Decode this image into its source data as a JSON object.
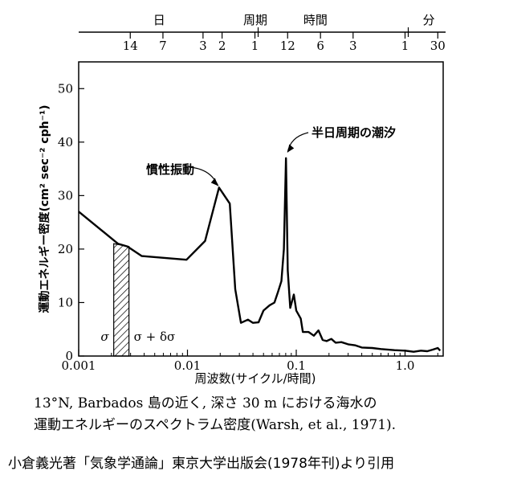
{
  "chart_data": {
    "type": "line",
    "xscale": "log",
    "xlim": [
      0.001,
      2.5
    ],
    "ylim": [
      0,
      55
    ],
    "xlabel": "周波数(サイクル/時間)",
    "ylabel": "運動エネルギー密度(cm² sec⁻² cph⁻¹)",
    "x_ticks": [
      0.001,
      0.01,
      0.1,
      1.0
    ],
    "x_tick_labels": [
      "0.001",
      "0.01",
      "0.1",
      "1.0"
    ],
    "y_ticks": [
      0,
      10,
      20,
      30,
      40,
      50
    ],
    "y_tick_labels": [
      "0",
      "10",
      "20",
      "30",
      "40",
      "50"
    ],
    "top_axis": {
      "groups": [
        {
          "label": "日",
          "center": 0.0055
        },
        {
          "label": "周期",
          "center": 0.042
        },
        {
          "label": "時間",
          "center": 0.15
        },
        {
          "label": "分",
          "center": 1.65
        }
      ],
      "ticks": [
        {
          "label": "14",
          "x": 0.00298
        },
        {
          "label": "7",
          "x": 0.00595
        },
        {
          "label": "3",
          "x": 0.0139
        },
        {
          "label": "2",
          "x": 0.0208
        },
        {
          "label": "1",
          "x": 0.0417
        },
        {
          "label": "12",
          "x": 0.0833
        },
        {
          "label": "6",
          "x": 0.167
        },
        {
          "label": "3",
          "x": 0.333
        },
        {
          "label": "1",
          "x": 1.0
        },
        {
          "label": "30",
          "x": 2.0
        }
      ]
    },
    "series": [
      {
        "points": [
          [
            0.001,
            27
          ],
          [
            0.0023,
            21
          ],
          [
            0.0028,
            20.5
          ],
          [
            0.0038,
            18.7
          ],
          [
            0.0098,
            18
          ],
          [
            0.0145,
            21.5
          ],
          [
            0.0195,
            31.5
          ],
          [
            0.0245,
            28.5
          ],
          [
            0.0275,
            12.5
          ],
          [
            0.031,
            6.2
          ],
          [
            0.036,
            6.8
          ],
          [
            0.04,
            6.2
          ],
          [
            0.045,
            6.3
          ],
          [
            0.05,
            8.5
          ],
          [
            0.057,
            9.5
          ],
          [
            0.063,
            10
          ],
          [
            0.068,
            12
          ],
          [
            0.073,
            14
          ],
          [
            0.077,
            20
          ],
          [
            0.0805,
            37
          ],
          [
            0.0835,
            16
          ],
          [
            0.088,
            9
          ],
          [
            0.095,
            11.5
          ],
          [
            0.1,
            8.5
          ],
          [
            0.11,
            7
          ],
          [
            0.115,
            4.5
          ],
          [
            0.13,
            4.5
          ],
          [
            0.145,
            3.8
          ],
          [
            0.16,
            4.8
          ],
          [
            0.175,
            3
          ],
          [
            0.19,
            2.8
          ],
          [
            0.21,
            3.2
          ],
          [
            0.23,
            2.5
          ],
          [
            0.26,
            2.6
          ],
          [
            0.3,
            2.2
          ],
          [
            0.35,
            2
          ],
          [
            0.4,
            1.6
          ],
          [
            0.5,
            1.5
          ],
          [
            0.6,
            1.3
          ],
          [
            0.8,
            1.1
          ],
          [
            1.0,
            1.0
          ],
          [
            1.2,
            0.8
          ],
          [
            1.4,
            1.0
          ],
          [
            1.6,
            0.9
          ],
          [
            1.8,
            1.2
          ],
          [
            2.0,
            1.5
          ],
          [
            2.1,
            1.0
          ]
        ]
      }
    ],
    "band": {
      "x_from": 0.0021,
      "x_to": 0.0029,
      "label_left": "σ",
      "label_right": "σ + δσ"
    },
    "annotations": [
      {
        "text": "慣性振動",
        "x": 0.0205,
        "y": 31.5
      },
      {
        "text": "半日周期の潮汐",
        "x": 0.0805,
        "y": 37.5
      }
    ]
  },
  "caption": {
    "line1": "13°N, Barbados 島の近く, 深さ 30 m における海水の",
    "line2": "運動エネルギーのスペクトラム密度(Warsh, et al., 1971)."
  },
  "credit": "小倉義光著「気象学通論」東京大学出版会(1978年刊)より引用"
}
